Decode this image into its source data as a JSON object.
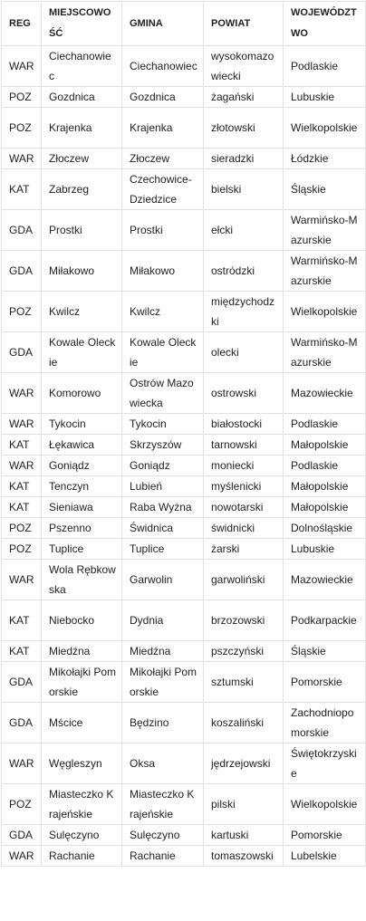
{
  "headers": [
    "REG",
    "MIEJSCOWOŚĆ",
    "GMINA",
    "POWIAT",
    "WOJEWÓDZTWO"
  ],
  "rows": [
    [
      "WAR",
      "Ciechanowiec",
      "Ciechanowiec",
      "wysokomazowiecki",
      "Podlaskie"
    ],
    [
      "POZ",
      "Gozdnica",
      "Gozdnica",
      "żagański",
      "Lubuskie"
    ],
    [
      "POZ",
      "Krajenka",
      "Krajenka",
      "złotowski",
      "Wielkopolskie"
    ],
    [
      "WAR",
      "Złoczew",
      "Złoczew",
      "sieradzki",
      "Łódzkie"
    ],
    [
      "KAT",
      "Zabrzeg",
      "Czechowice-Dziedzice",
      "bielski",
      "Śląskie"
    ],
    [
      "GDA",
      "Prostki",
      "Prostki",
      "ełcki",
      "Warmińsko-Mazurskie"
    ],
    [
      "GDA",
      "Miłakowo",
      "Miłakowo",
      "ostródzki",
      "Warmińsko-Mazurskie"
    ],
    [
      "POZ",
      "Kwilcz",
      "Kwilcz",
      "międzychodzki",
      "Wielkopolskie"
    ],
    [
      "GDA",
      "Kowale Oleckie",
      "Kowale Oleckie",
      "olecki",
      "Warmińsko-Mazurskie"
    ],
    [
      "WAR",
      "Komorowo",
      "Ostrów Mazowiecka",
      "ostrowski",
      "Mazowieckie"
    ],
    [
      "WAR",
      "Tykocin",
      "Tykocin",
      "białostocki",
      "Podlaskie"
    ],
    [
      "KAT",
      "Łękawica",
      "Skrzyszów",
      "tarnowski",
      "Małopolskie"
    ],
    [
      "WAR",
      "Goniądz",
      "Goniądz",
      "moniecki",
      "Podlaskie"
    ],
    [
      "KAT",
      "Tenczyn",
      "Lubień",
      "myślenicki",
      "Małopolskie"
    ],
    [
      "KAT",
      "Sieniawa",
      "Raba Wyżna",
      "nowotarski",
      "Małopolskie"
    ],
    [
      "POZ",
      "Pszenno",
      "Świdnica",
      "świdnicki",
      "Dolnośląskie"
    ],
    [
      "POZ",
      "Tuplice",
      "Tuplice",
      "żarski",
      "Lubuskie"
    ],
    [
      "WAR",
      "Wola Rębkowska",
      "Garwolin",
      "garwoliński",
      "Mazowieckie"
    ],
    [
      "KAT",
      "Niebocko",
      "Dydnia",
      "brzozowski",
      "Podkarpackie"
    ],
    [
      "KAT",
      "Miedźna",
      "Miedźna",
      "pszczyński",
      "Śląskie"
    ],
    [
      "GDA",
      "Mikołajki Pomorskie",
      "Mikołajki Pomorskie",
      "sztumski",
      "Pomorskie"
    ],
    [
      "GDA",
      "Mścice",
      "Będzino",
      "koszaliński",
      "Zachodniopomorskie"
    ],
    [
      "WAR",
      "Węgleszyn",
      "Oksa",
      "jędrzejowski",
      "Świętokrzyskie"
    ],
    [
      "POZ",
      "Miasteczko Krajeńskie",
      "Miasteczko Krajeńskie",
      "pilski",
      "Wielkopolskie"
    ],
    [
      "GDA",
      "Sulęczyno",
      "Sulęczyno",
      "kartuski",
      "Pomorskie"
    ],
    [
      "WAR",
      "Rachanie",
      "Rachanie",
      "tomaszowski",
      "Lubelskie"
    ]
  ]
}
